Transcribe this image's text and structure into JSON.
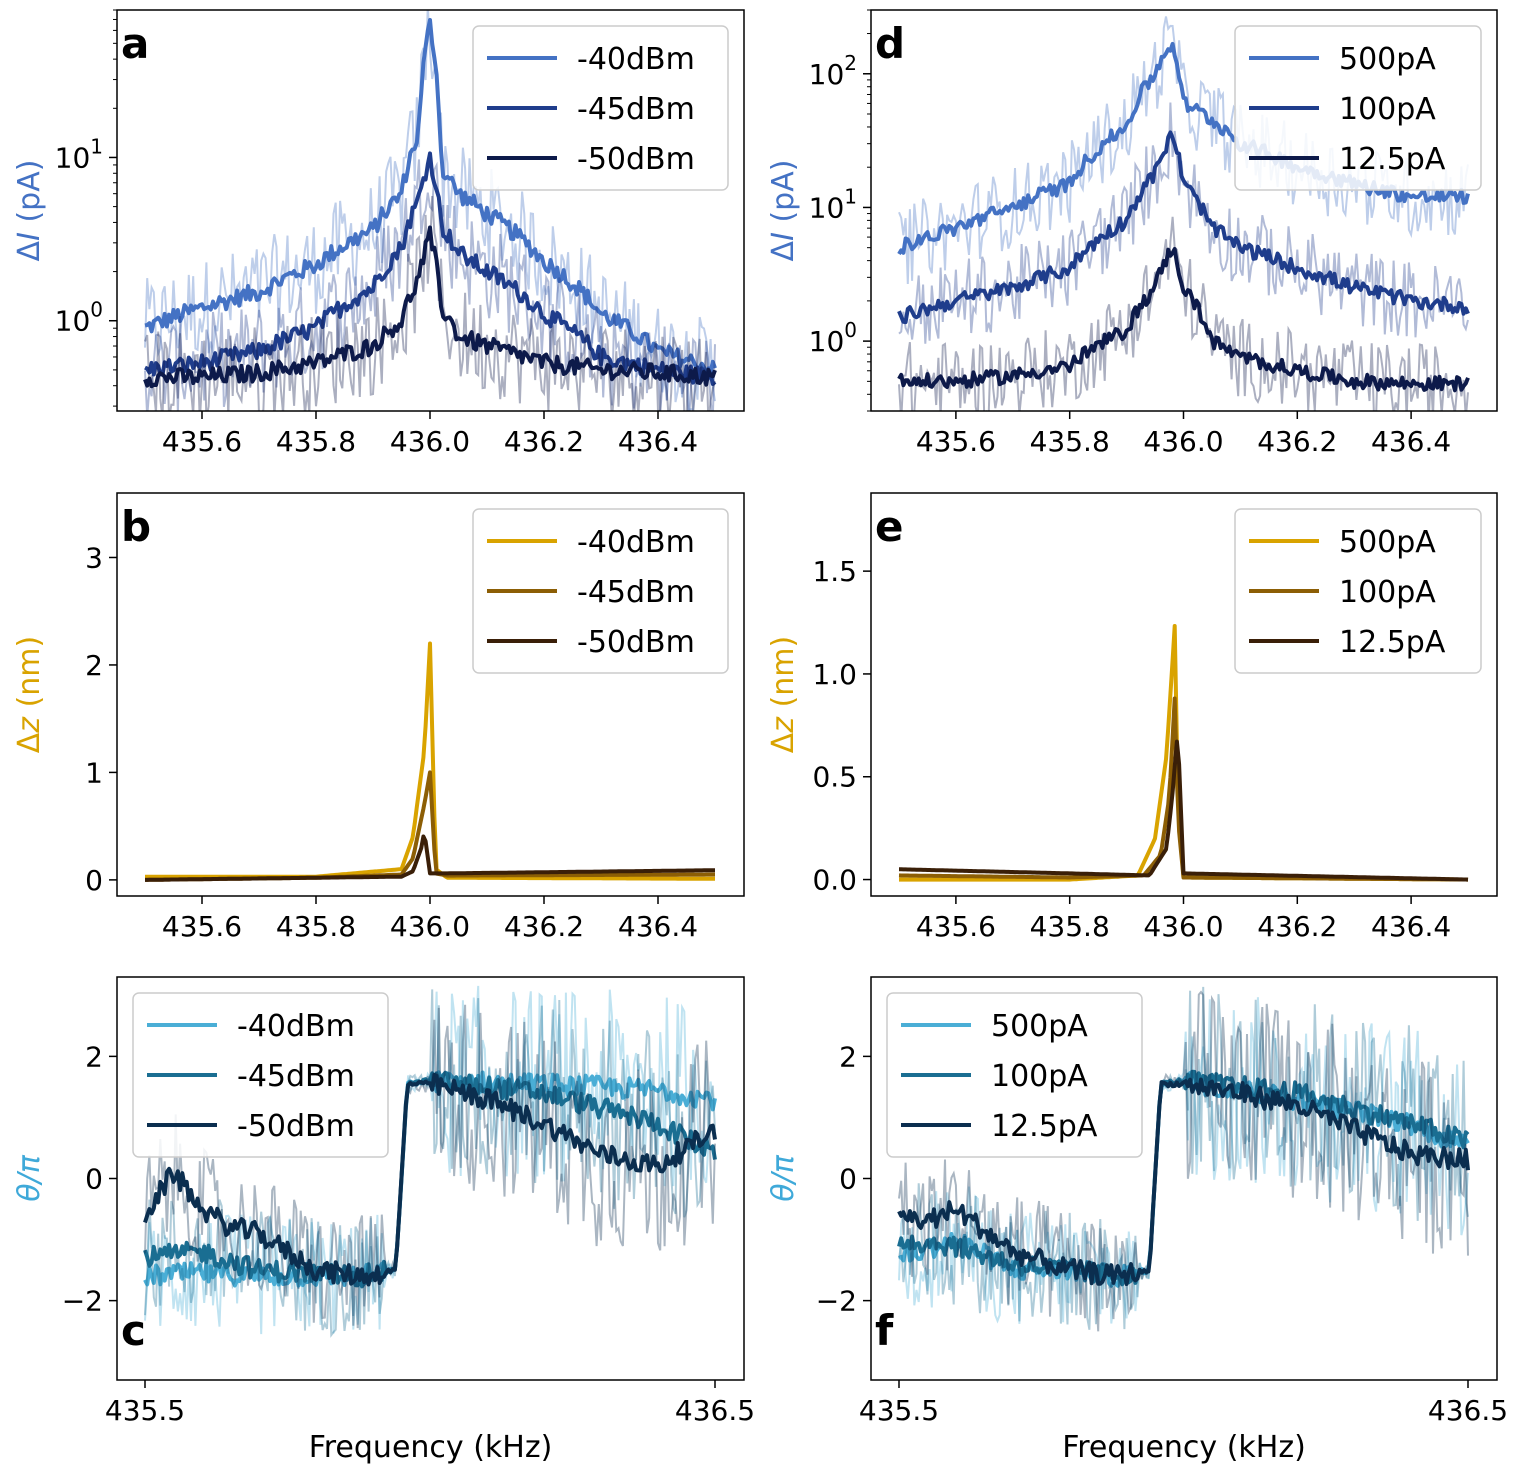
{
  "figure": {
    "xlabel": "Frequency (kHz)"
  },
  "chart_data": [
    {
      "id": "a",
      "letter": "a",
      "type": "line",
      "yscale": "log",
      "ylabel_prefix": "Δ",
      "ylabel_var": "I",
      "ylabel_unit": " (pA)",
      "ylabel_color": "#4472C4",
      "xlim": [
        435.5,
        436.5
      ],
      "ylim": [
        0.28,
        80
      ],
      "xticks": [
        435.6,
        435.8,
        436.0,
        436.2,
        436.4
      ],
      "xtick_labels": [
        "435.6",
        "435.8",
        "436.0",
        "436.2",
        "436.4"
      ],
      "yticks": [
        {
          "v": 1,
          "b": "10",
          "e": "0"
        },
        {
          "v": 10,
          "b": "10",
          "e": "1"
        }
      ],
      "legend": {
        "position": "top-right"
      },
      "series": [
        {
          "name": "-40dBm",
          "color": "#4472C4",
          "x": [
            435.5,
            435.6,
            435.7,
            435.8,
            435.9,
            435.95,
            435.98,
            436.0,
            436.02,
            436.05,
            436.1,
            436.2,
            436.3,
            436.4,
            436.5
          ],
          "values": [
            0.9,
            1.2,
            1.5,
            2.2,
            3.6,
            6.0,
            14,
            65,
            8.5,
            6.0,
            4.5,
            2.3,
            1.1,
            0.65,
            0.5
          ]
        },
        {
          "name": "-45dBm",
          "color": "#1F3D8C",
          "x": [
            435.5,
            435.6,
            435.7,
            435.8,
            435.9,
            435.95,
            435.98,
            436.0,
            436.02,
            436.05,
            436.1,
            436.2,
            436.3,
            436.4,
            436.5
          ],
          "values": [
            0.5,
            0.55,
            0.65,
            0.9,
            1.6,
            2.8,
            5.5,
            10,
            3.8,
            2.6,
            2.0,
            1.1,
            0.6,
            0.5,
            0.45
          ]
        },
        {
          "name": "-50dBm",
          "color": "#0D1A4A",
          "x": [
            435.5,
            435.6,
            435.7,
            435.8,
            435.9,
            435.95,
            435.98,
            436.0,
            436.02,
            436.05,
            436.1,
            436.2,
            436.3,
            436.4,
            436.5
          ],
          "values": [
            0.45,
            0.45,
            0.48,
            0.55,
            0.7,
            1.0,
            1.8,
            3.3,
            1.2,
            0.8,
            0.7,
            0.55,
            0.5,
            0.48,
            0.45
          ]
        }
      ]
    },
    {
      "id": "b",
      "letter": "b",
      "type": "line",
      "yscale": "linear",
      "ylabel_prefix": "Δ",
      "ylabel_var": "z",
      "ylabel_unit": " (nm)",
      "ylabel_color": "#D9A300",
      "xlim": [
        435.5,
        436.5
      ],
      "ylim": [
        -0.15,
        3.6
      ],
      "xticks": [
        435.6,
        435.8,
        436.0,
        436.2,
        436.4
      ],
      "xtick_labels": [
        "435.6",
        "435.8",
        "436.0",
        "436.2",
        "436.4"
      ],
      "yticks": [
        {
          "v": 0,
          "t": "0"
        },
        {
          "v": 1,
          "t": "1"
        },
        {
          "v": 2,
          "t": "2"
        },
        {
          "v": 3,
          "t": "3"
        }
      ],
      "legend": {
        "position": "top-right"
      },
      "series": [
        {
          "name": "-40dBm",
          "color": "#D9A300",
          "x": [
            435.5,
            435.8,
            435.95,
            435.97,
            435.99,
            436.0,
            436.01,
            436.03,
            436.5
          ],
          "values": [
            0.03,
            0.03,
            0.1,
            0.4,
            1.2,
            2.2,
            0.1,
            0.02,
            0.01
          ]
        },
        {
          "name": "-45dBm",
          "color": "#8C5E05",
          "x": [
            435.5,
            435.8,
            435.95,
            435.97,
            435.99,
            436.0,
            436.01,
            436.03,
            436.5
          ],
          "values": [
            0.0,
            0.02,
            0.05,
            0.2,
            0.7,
            1.0,
            0.06,
            0.04,
            0.05
          ]
        },
        {
          "name": "-50dBm",
          "color": "#3A1F08",
          "x": [
            435.5,
            435.8,
            435.95,
            435.97,
            435.985,
            435.99,
            436.0,
            436.02,
            436.5
          ],
          "values": [
            0.0,
            0.02,
            0.03,
            0.08,
            0.3,
            0.45,
            0.06,
            0.06,
            0.09
          ]
        }
      ]
    },
    {
      "id": "c",
      "letter": "c",
      "type": "line",
      "yscale": "linear",
      "ylabel_prefix": "",
      "ylabel_var": "θ/π",
      "ylabel_unit": "",
      "ylabel_color": "#3FA9D9",
      "xlim": [
        435.5,
        436.5
      ],
      "ylim": [
        -3.3,
        3.3
      ],
      "xticks": [
        435.5,
        436.5
      ],
      "xtick_labels": [
        "435.5",
        "436.5"
      ],
      "yticks": [
        {
          "v": -2,
          "t": "−2"
        },
        {
          "v": 0,
          "t": "0"
        },
        {
          "v": 2,
          "t": "2"
        }
      ],
      "legend": {
        "position": "top-left"
      },
      "series": [
        {
          "name": "-40dBm",
          "color": "#4AAED6",
          "x": [
            435.5,
            435.6,
            435.7,
            435.8,
            435.88,
            435.94,
            435.96,
            436.0,
            436.2,
            436.4,
            436.5
          ],
          "values": [
            -1.6,
            -1.55,
            -1.6,
            -1.6,
            -1.6,
            -1.5,
            1.55,
            1.6,
            1.55,
            1.45,
            1.3
          ]
        },
        {
          "name": "-45dBm",
          "color": "#1A6E92",
          "x": [
            435.5,
            435.6,
            435.7,
            435.8,
            435.88,
            435.94,
            435.96,
            436.0,
            436.2,
            436.4,
            436.5
          ],
          "values": [
            -1.3,
            -1.2,
            -1.5,
            -1.55,
            -1.6,
            -1.5,
            1.55,
            1.6,
            1.4,
            0.9,
            0.4
          ]
        },
        {
          "name": "-50dBm",
          "color": "#0B2E4F",
          "x": [
            435.5,
            435.55,
            435.6,
            435.65,
            435.7,
            435.8,
            435.88,
            435.94,
            435.96,
            436.0,
            436.1,
            436.2,
            436.3,
            436.4,
            436.5
          ],
          "values": [
            -0.6,
            0.1,
            -0.5,
            -0.8,
            -0.9,
            -1.5,
            -1.6,
            -1.5,
            1.55,
            1.55,
            1.3,
            0.9,
            0.4,
            0.2,
            0.8
          ]
        }
      ]
    },
    {
      "id": "d",
      "letter": "d",
      "type": "line",
      "yscale": "log",
      "ylabel_prefix": "Δ",
      "ylabel_var": "I",
      "ylabel_unit": " (pA)",
      "ylabel_color": "#4472C4",
      "xlim": [
        435.5,
        436.5
      ],
      "ylim": [
        0.3,
        300
      ],
      "xticks": [
        435.6,
        435.8,
        436.0,
        436.2,
        436.4
      ],
      "xtick_labels": [
        "435.6",
        "435.8",
        "436.0",
        "436.2",
        "436.4"
      ],
      "yticks": [
        {
          "v": 1,
          "b": "10",
          "e": "0"
        },
        {
          "v": 10,
          "b": "10",
          "e": "1"
        },
        {
          "v": 100,
          "b": "10",
          "e": "2"
        }
      ],
      "legend": {
        "position": "top-right"
      },
      "series": [
        {
          "name": "500pA",
          "color": "#4472C4",
          "x": [
            435.5,
            435.6,
            435.7,
            435.8,
            435.9,
            435.95,
            435.98,
            436.0,
            436.05,
            436.1,
            436.2,
            436.3,
            436.4,
            436.5
          ],
          "values": [
            5,
            7,
            10,
            15,
            40,
            100,
            170,
            60,
            45,
            30,
            20,
            15,
            12,
            12
          ]
        },
        {
          "name": "100pA",
          "color": "#1F3D8C",
          "x": [
            435.5,
            435.6,
            435.7,
            435.8,
            435.9,
            435.95,
            435.98,
            436.0,
            436.05,
            436.1,
            436.2,
            436.3,
            436.4,
            436.5
          ],
          "values": [
            1.5,
            2.0,
            2.5,
            3.5,
            8,
            18,
            35,
            15,
            7,
            5,
            3.5,
            2.5,
            2.0,
            1.8
          ]
        },
        {
          "name": "12.5pA",
          "color": "#0D1A4A",
          "x": [
            435.5,
            435.6,
            435.7,
            435.8,
            435.9,
            435.95,
            435.98,
            436.0,
            436.05,
            436.1,
            436.2,
            436.3,
            436.4,
            436.5
          ],
          "values": [
            0.5,
            0.5,
            0.55,
            0.65,
            1.2,
            2.5,
            5.0,
            2.5,
            1.0,
            0.75,
            0.6,
            0.5,
            0.48,
            0.48
          ]
        }
      ]
    },
    {
      "id": "e",
      "letter": "e",
      "type": "line",
      "yscale": "linear",
      "ylabel_prefix": "Δ",
      "ylabel_var": "z",
      "ylabel_unit": " (nm)",
      "ylabel_color": "#D9A300",
      "xlim": [
        435.5,
        436.5
      ],
      "ylim": [
        -0.08,
        1.88
      ],
      "xticks": [
        435.6,
        435.8,
        436.0,
        436.2,
        436.4
      ],
      "xtick_labels": [
        "435.6",
        "435.8",
        "436.0",
        "436.2",
        "436.4"
      ],
      "yticks": [
        {
          "v": 0,
          "t": "0.0"
        },
        {
          "v": 0.5,
          "t": "0.5"
        },
        {
          "v": 1.0,
          "t": "1.0"
        },
        {
          "v": 1.5,
          "t": "1.5"
        }
      ],
      "legend": {
        "position": "top-right"
      },
      "series": [
        {
          "name": "500pA",
          "color": "#D9A300",
          "x": [
            435.5,
            435.8,
            435.92,
            435.95,
            435.97,
            435.985,
            435.99,
            436.0,
            436.5
          ],
          "values": [
            0.0,
            0.0,
            0.02,
            0.2,
            0.6,
            1.25,
            0.4,
            0.01,
            0.0
          ]
        },
        {
          "name": "100pA",
          "color": "#8C5E05",
          "x": [
            435.5,
            435.8,
            435.93,
            435.96,
            435.975,
            435.985,
            435.99,
            436.0,
            436.5
          ],
          "values": [
            0.02,
            0.01,
            0.02,
            0.12,
            0.4,
            0.9,
            0.3,
            0.01,
            0.0
          ]
        },
        {
          "name": "12.5pA",
          "color": "#3A1F08",
          "x": [
            435.5,
            435.8,
            435.94,
            435.97,
            435.98,
            435.99,
            436.0,
            436.5
          ],
          "values": [
            0.05,
            0.03,
            0.02,
            0.15,
            0.4,
            0.72,
            0.03,
            0.0
          ]
        }
      ]
    },
    {
      "id": "f",
      "letter": "f",
      "type": "line",
      "yscale": "linear",
      "ylabel_prefix": "",
      "ylabel_var": "θ/π",
      "ylabel_unit": "",
      "ylabel_color": "#3FA9D9",
      "xlim": [
        435.5,
        436.5
      ],
      "ylim": [
        -3.3,
        3.3
      ],
      "xticks": [
        435.5,
        436.5
      ],
      "xtick_labels": [
        "435.5",
        "436.5"
      ],
      "yticks": [
        {
          "v": -2,
          "t": "−2"
        },
        {
          "v": 0,
          "t": "0"
        },
        {
          "v": 2,
          "t": "2"
        }
      ],
      "legend": {
        "position": "top-left"
      },
      "series": [
        {
          "name": "500pA",
          "color": "#4AAED6",
          "x": [
            435.5,
            435.6,
            435.7,
            435.8,
            435.88,
            435.94,
            435.96,
            436.0,
            436.2,
            436.4,
            436.5
          ],
          "values": [
            -1.3,
            -1.0,
            -1.5,
            -1.5,
            -1.6,
            -1.5,
            1.55,
            1.6,
            1.3,
            0.9,
            0.5
          ]
        },
        {
          "name": "100pA",
          "color": "#1A6E92",
          "x": [
            435.5,
            435.6,
            435.7,
            435.8,
            435.88,
            435.94,
            435.96,
            436.0,
            436.2,
            436.4,
            436.5
          ],
          "values": [
            -1.0,
            -1.1,
            -1.4,
            -1.5,
            -1.6,
            -1.5,
            1.55,
            1.6,
            1.4,
            0.9,
            0.6
          ]
        },
        {
          "name": "12.5pA",
          "color": "#0B2E4F",
          "x": [
            435.5,
            435.55,
            435.6,
            435.7,
            435.8,
            435.88,
            435.94,
            435.96,
            436.0,
            436.1,
            436.2,
            436.3,
            436.4,
            436.5
          ],
          "values": [
            -0.6,
            -0.7,
            -0.5,
            -1.2,
            -1.5,
            -1.6,
            -1.5,
            1.55,
            1.55,
            1.4,
            1.2,
            0.8,
            0.4,
            0.3
          ]
        }
      ]
    }
  ]
}
